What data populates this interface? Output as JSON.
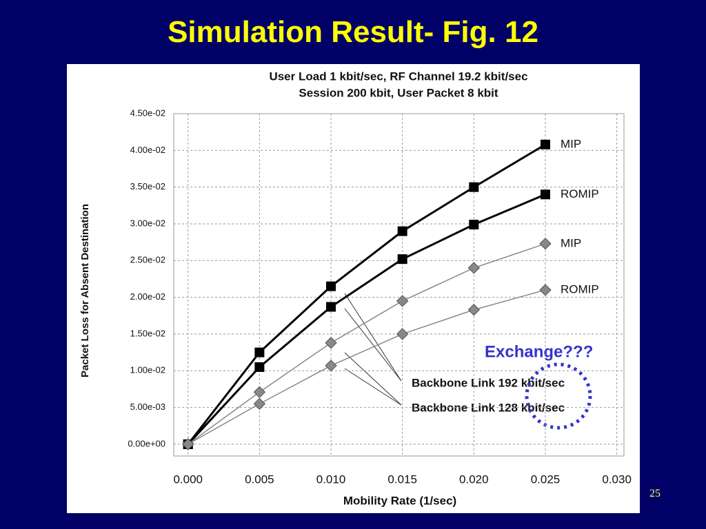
{
  "slide": {
    "title": "Simulation Result- Fig. 12",
    "page_number": "25"
  },
  "chart_data": {
    "type": "line",
    "title": "User Load 1 kbit/sec,  RF Channel 19.2 kbit/sec",
    "subtitle": "Session 200 kbit, User Packet 8 kbit",
    "x_label": "Mobility Rate (1/sec)",
    "y_label": "Packet Loss for Absent Destination",
    "x": [
      0,
      0.005,
      0.01,
      0.015,
      0.02,
      0.025
    ],
    "series": [
      {
        "name": "MIP",
        "color": "#000000",
        "marker": "square",
        "values": [
          0,
          0.0125,
          0.0215,
          0.029,
          0.035,
          0.0408
        ]
      },
      {
        "name": "ROMIP",
        "color": "#000000",
        "marker": "square",
        "values": [
          0,
          0.0105,
          0.0187,
          0.0252,
          0.0299,
          0.034
        ]
      },
      {
        "name": "MIP",
        "color": "#888888",
        "marker": "diamond",
        "values": [
          0,
          0.0071,
          0.0138,
          0.0195,
          0.024,
          0.0273
        ]
      },
      {
        "name": "ROMIP",
        "color": "#888888",
        "marker": "diamond",
        "values": [
          0,
          0.0055,
          0.0107,
          0.015,
          0.0183,
          0.021
        ]
      }
    ],
    "xlim": [
      -0.001,
      0.0305
    ],
    "ylim": [
      -0.0016,
      0.045
    ],
    "xticks": [
      {
        "value": 0,
        "label": "0.000"
      },
      {
        "value": 0.005,
        "label": "0.005"
      },
      {
        "value": 0.01,
        "label": "0.010"
      },
      {
        "value": 0.015,
        "label": "0.015"
      },
      {
        "value": 0.02,
        "label": "0.020"
      },
      {
        "value": 0.025,
        "label": "0.025"
      },
      {
        "value": 0.03,
        "label": "0.030"
      }
    ],
    "yticks": [
      {
        "value": 0,
        "label": "0.00e+00"
      },
      {
        "value": 0.005,
        "label": "5.00e-03"
      },
      {
        "value": 0.01,
        "label": "1.00e-02"
      },
      {
        "value": 0.015,
        "label": "1.50e-02"
      },
      {
        "value": 0.02,
        "label": "2.00e-02"
      },
      {
        "value": 0.025,
        "label": "2.50e-02"
      },
      {
        "value": 0.03,
        "label": "3.00e-02"
      },
      {
        "value": 0.035,
        "label": "3.50e-02"
      },
      {
        "value": 0.04,
        "label": "4.00e-02"
      },
      {
        "value": 0.045,
        "label": "4.50e-02"
      }
    ],
    "grid": true,
    "annotations": [
      "Backbone Link 192 kbit/sec",
      "Backbone Link 128 kbit/sec",
      "Exchange???"
    ]
  }
}
